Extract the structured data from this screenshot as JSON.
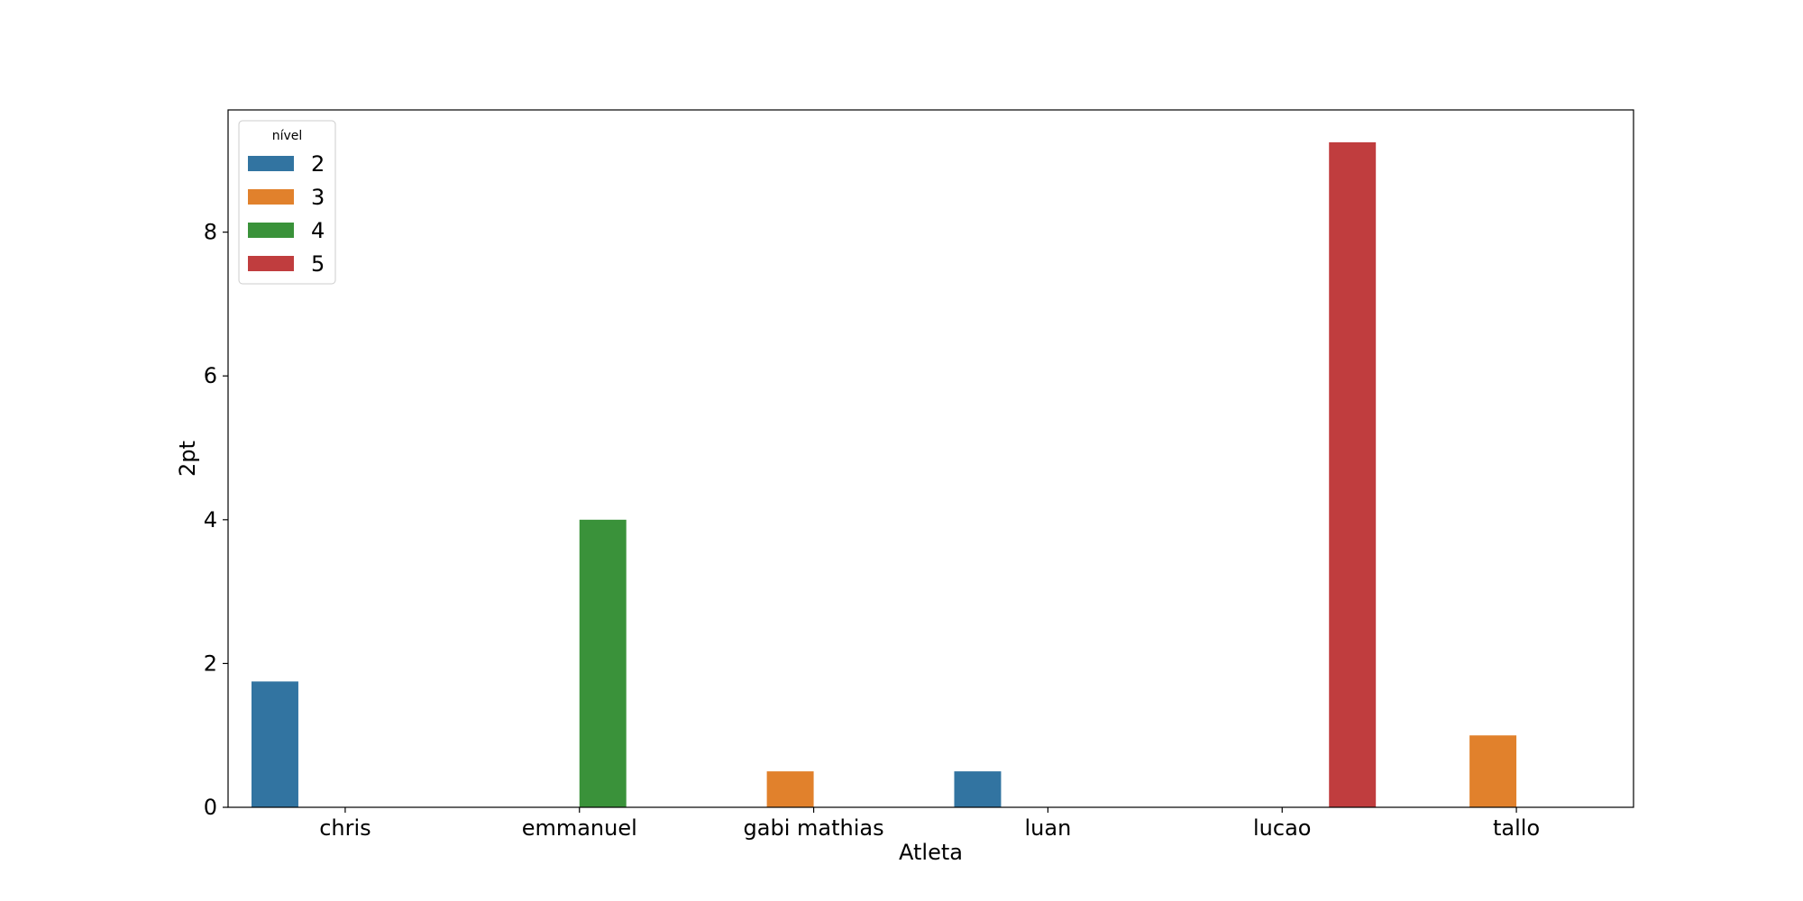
{
  "chart_data": {
    "type": "bar",
    "xlabel": "Atleta",
    "ylabel": "2pt",
    "categories": [
      "chris",
      "emmanuel",
      "gabi mathias",
      "luan",
      "lucao",
      "tallo"
    ],
    "ylim": [
      0,
      9.7
    ],
    "yticks": [
      "0",
      "2",
      "4",
      "6",
      "8"
    ],
    "grid": false,
    "legend": {
      "title": "nível",
      "placement": "top-left",
      "entries": [
        {
          "label": "2",
          "color": "#3274a1"
        },
        {
          "label": "3",
          "color": "#e1812c"
        },
        {
          "label": "4",
          "color": "#3a923a"
        },
        {
          "label": "5",
          "color": "#c03d3e"
        }
      ]
    },
    "series": [
      {
        "name": "2",
        "color": "#3274a1",
        "values": [
          1.75,
          null,
          null,
          0.5,
          null,
          null
        ]
      },
      {
        "name": "3",
        "color": "#e1812c",
        "values": [
          null,
          null,
          0.5,
          null,
          null,
          1.0
        ]
      },
      {
        "name": "4",
        "color": "#3a923a",
        "values": [
          null,
          4.0,
          null,
          null,
          null,
          null
        ]
      },
      {
        "name": "5",
        "color": "#c03d3e",
        "values": [
          null,
          null,
          null,
          null,
          9.25,
          null
        ]
      }
    ]
  }
}
